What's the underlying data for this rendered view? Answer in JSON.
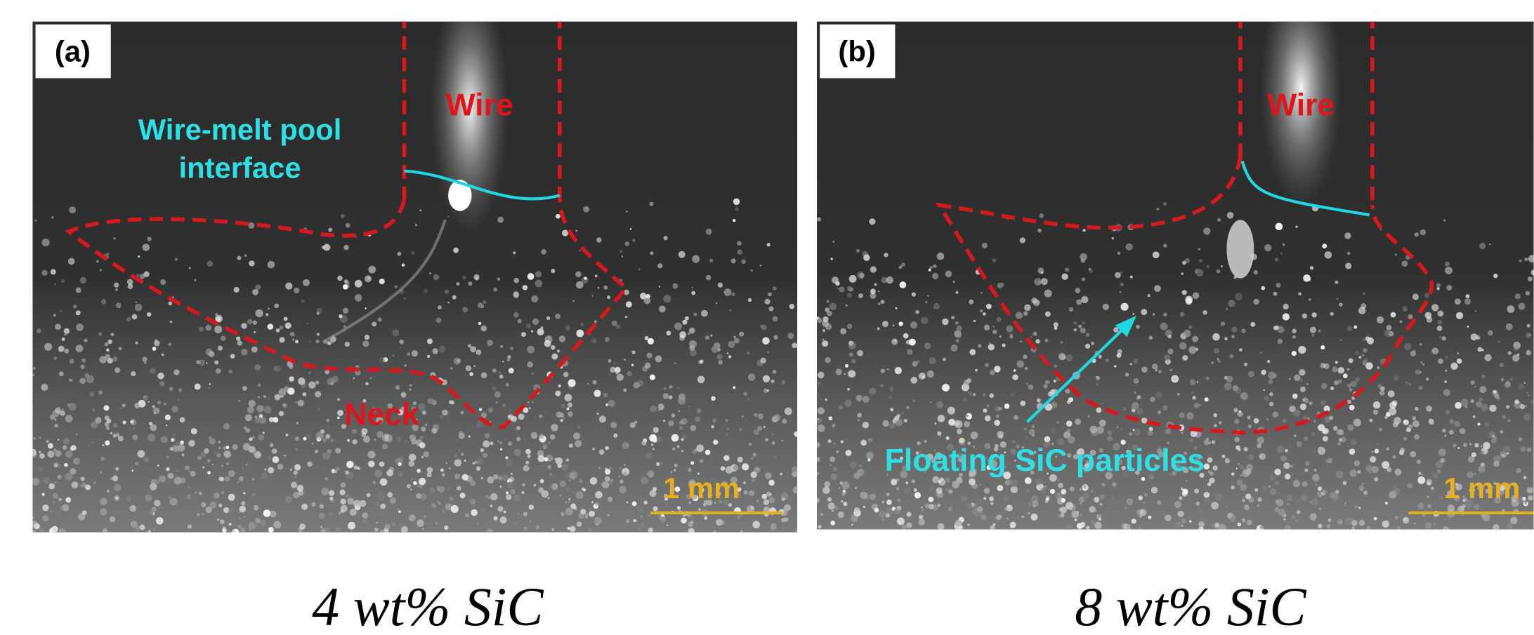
{
  "panels": [
    {
      "label": "(a)",
      "wire": "Wire",
      "interface_lines": [
        "Wire-melt pool",
        "interface"
      ],
      "neck": "Neck",
      "scale_bar": "1 mm",
      "caption": "4 wt% SiC"
    },
    {
      "label": "(b)",
      "wire": "Wire",
      "particles": "Floating SiC particles",
      "scale_bar": "1 mm",
      "caption": "8 wt% SiC"
    }
  ]
}
